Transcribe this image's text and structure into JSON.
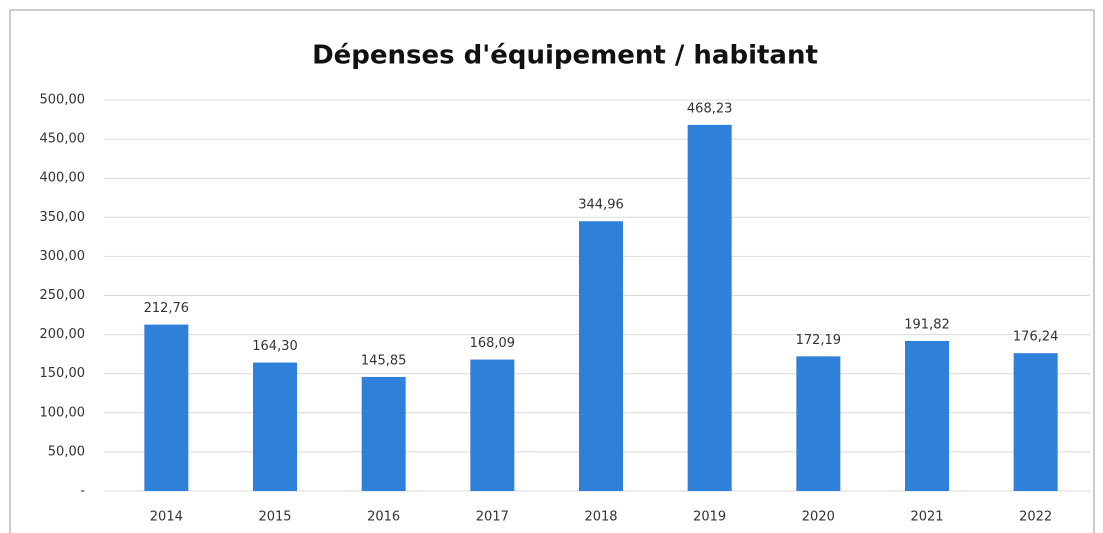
{
  "chart_data": {
    "type": "bar",
    "title": "Dépenses d'équipement / habitant",
    "categories": [
      "2014",
      "2015",
      "2016",
      "2017",
      "2018",
      "2019",
      "2020",
      "2021",
      "2022"
    ],
    "values": [
      212.76,
      164.3,
      145.85,
      168.09,
      344.96,
      468.23,
      172.19,
      191.82,
      176.24
    ],
    "value_labels": [
      "212,76",
      "164,30",
      "145,85",
      "168,09",
      "344,96",
      "468,23",
      "172,19",
      "191,82",
      "176,24"
    ],
    "color": "#2f80d8",
    "ylim": [
      0,
      500
    ],
    "yticks": [
      {
        "value": 0,
        "label": "-"
      },
      {
        "value": 50,
        "label": "50,00"
      },
      {
        "value": 100,
        "label": "100,00"
      },
      {
        "value": 150,
        "label": "150,00"
      },
      {
        "value": 200,
        "label": "200,00"
      },
      {
        "value": 250,
        "label": "250,00"
      },
      {
        "value": 300,
        "label": "300,00"
      },
      {
        "value": 350,
        "label": "350,00"
      },
      {
        "value": 400,
        "label": "400,00"
      },
      {
        "value": 450,
        "label": "450,00"
      },
      {
        "value": 500,
        "label": "500,00"
      }
    ],
    "grid": true
  }
}
